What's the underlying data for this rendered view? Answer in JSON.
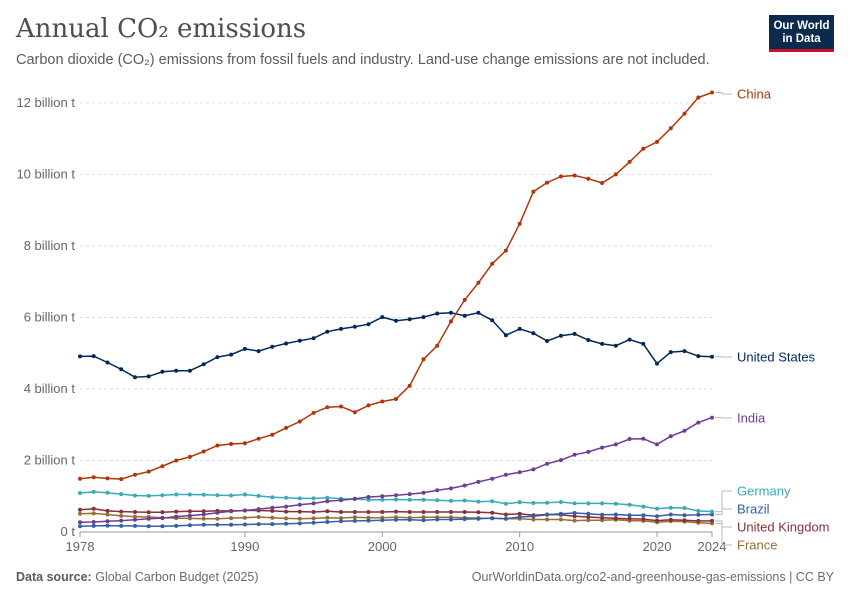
{
  "header": {
    "title": "Annual CO₂ emissions",
    "subtitle": "Carbon dioxide (CO₂) emissions from fossil fuels and industry. Land-use change emissions are not included."
  },
  "logo": {
    "line1": "Our World",
    "line2": "in Data"
  },
  "footer": {
    "source_label": "Data source:",
    "source_value": "Global Carbon Budget (2025)",
    "url": "OurWorldinData.org/co2-and-greenhouse-gas-emissions | CC BY"
  },
  "chart_data": {
    "type": "line",
    "x": [
      1978,
      1979,
      1980,
      1981,
      1982,
      1983,
      1984,
      1985,
      1986,
      1987,
      1988,
      1989,
      1990,
      1991,
      1992,
      1993,
      1994,
      1995,
      1996,
      1997,
      1998,
      1999,
      2000,
      2001,
      2002,
      2003,
      2004,
      2005,
      2006,
      2007,
      2008,
      2009,
      2010,
      2011,
      2012,
      2013,
      2014,
      2015,
      2016,
      2017,
      2018,
      2019,
      2020,
      2021,
      2022,
      2023,
      2024
    ],
    "xlim": [
      1978,
      2024
    ],
    "ylim": [
      0,
      12500000000
    ],
    "yticks": [
      0,
      2000000000,
      4000000000,
      6000000000,
      8000000000,
      10000000000,
      12000000000
    ],
    "ytick_labels": [
      "0 t",
      "2 billion t",
      "4 billion t",
      "6 billion t",
      "8 billion t",
      "10 billion t",
      "12 billion t"
    ],
    "xticks": [
      1978,
      1990,
      2000,
      2010,
      2020,
      2024
    ],
    "xtick_labels": [
      "1978",
      "1990",
      "2000",
      "2010",
      "2020",
      "2024"
    ],
    "grid": "horizontal-dashed",
    "legend": "right-end-labels",
    "series": [
      {
        "name": "China",
        "color": "#b13507",
        "label_value": 12290000000,
        "values": [
          1490000000,
          1530000000,
          1500000000,
          1480000000,
          1600000000,
          1690000000,
          1840000000,
          2000000000,
          2100000000,
          2250000000,
          2420000000,
          2460000000,
          2480000000,
          2610000000,
          2720000000,
          2910000000,
          3090000000,
          3330000000,
          3490000000,
          3510000000,
          3350000000,
          3540000000,
          3650000000,
          3720000000,
          4090000000,
          4830000000,
          5210000000,
          5890000000,
          6490000000,
          6970000000,
          7500000000,
          7870000000,
          8620000000,
          9520000000,
          9770000000,
          9940000000,
          9970000000,
          9880000000,
          9760000000,
          10000000000,
          10350000000,
          10720000000,
          10910000000,
          11290000000,
          11700000000,
          12150000000,
          12290000000
        ]
      },
      {
        "name": "United States",
        "color": "#00295b",
        "label_value": 4900000000,
        "values": [
          4910000000,
          4920000000,
          4740000000,
          4550000000,
          4330000000,
          4350000000,
          4480000000,
          4510000000,
          4510000000,
          4690000000,
          4890000000,
          4960000000,
          5120000000,
          5060000000,
          5180000000,
          5270000000,
          5350000000,
          5420000000,
          5600000000,
          5680000000,
          5740000000,
          5810000000,
          6010000000,
          5910000000,
          5950000000,
          6010000000,
          6110000000,
          6130000000,
          6050000000,
          6130000000,
          5920000000,
          5500000000,
          5680000000,
          5560000000,
          5340000000,
          5490000000,
          5540000000,
          5370000000,
          5260000000,
          5210000000,
          5380000000,
          5260000000,
          4710000000,
          5030000000,
          5060000000,
          4920000000,
          4900000000
        ]
      },
      {
        "name": "India",
        "color": "#6d3e91",
        "label_value": 3200000000,
        "values": [
          270000000,
          280000000,
          300000000,
          320000000,
          340000000,
          370000000,
          390000000,
          430000000,
          460000000,
          490000000,
          540000000,
          580000000,
          600000000,
          640000000,
          680000000,
          710000000,
          760000000,
          800000000,
          860000000,
          890000000,
          930000000,
          980000000,
          1000000000,
          1030000000,
          1060000000,
          1100000000,
          1170000000,
          1220000000,
          1300000000,
          1400000000,
          1490000000,
          1600000000,
          1670000000,
          1750000000,
          1910000000,
          2010000000,
          2160000000,
          2240000000,
          2360000000,
          2450000000,
          2600000000,
          2610000000,
          2450000000,
          2680000000,
          2830000000,
          3060000000,
          3200000000
        ]
      },
      {
        "name": "Germany",
        "color": "#38aaba",
        "label_value": 570000000,
        "values": [
          1090000000,
          1120000000,
          1100000000,
          1060000000,
          1020000000,
          1010000000,
          1030000000,
          1050000000,
          1050000000,
          1040000000,
          1030000000,
          1020000000,
          1050000000,
          1010000000,
          970000000,
          960000000,
          940000000,
          940000000,
          960000000,
          930000000,
          920000000,
          900000000,
          900000000,
          910000000,
          900000000,
          900000000,
          890000000,
          870000000,
          880000000,
          850000000,
          860000000,
          790000000,
          830000000,
          810000000,
          820000000,
          840000000,
          800000000,
          800000000,
          800000000,
          790000000,
          760000000,
          710000000,
          650000000,
          680000000,
          670000000,
          590000000,
          570000000
        ]
      },
      {
        "name": "Brazil",
        "color": "#3360a9",
        "label_value": 490000000,
        "values": [
          160000000,
          170000000,
          180000000,
          170000000,
          170000000,
          160000000,
          160000000,
          170000000,
          190000000,
          200000000,
          200000000,
          200000000,
          210000000,
          220000000,
          220000000,
          230000000,
          240000000,
          260000000,
          280000000,
          300000000,
          310000000,
          320000000,
          330000000,
          340000000,
          340000000,
          330000000,
          350000000,
          350000000,
          360000000,
          370000000,
          390000000,
          370000000,
          420000000,
          440000000,
          480000000,
          510000000,
          530000000,
          510000000,
          480000000,
          490000000,
          470000000,
          470000000,
          440000000,
          490000000,
          470000000,
          480000000,
          490000000
        ]
      },
      {
        "name": "United Kingdom",
        "color": "#883039",
        "label_value": 310000000,
        "values": [
          620000000,
          650000000,
          590000000,
          570000000,
          560000000,
          550000000,
          550000000,
          570000000,
          580000000,
          580000000,
          590000000,
          590000000,
          600000000,
          600000000,
          590000000,
          570000000,
          570000000,
          560000000,
          580000000,
          560000000,
          560000000,
          560000000,
          560000000,
          570000000,
          560000000,
          560000000,
          560000000,
          560000000,
          560000000,
          550000000,
          540000000,
          490000000,
          510000000,
          470000000,
          490000000,
          480000000,
          440000000,
          420000000,
          400000000,
          380000000,
          370000000,
          360000000,
          320000000,
          340000000,
          330000000,
          310000000,
          310000000
        ]
      },
      {
        "name": "France",
        "color": "#996d39",
        "label_value": 240000000,
        "values": [
          510000000,
          520000000,
          490000000,
          450000000,
          430000000,
          420000000,
          400000000,
          390000000,
          380000000,
          370000000,
          370000000,
          390000000,
          400000000,
          420000000,
          400000000,
          380000000,
          370000000,
          380000000,
          400000000,
          390000000,
          410000000,
          400000000,
          400000000,
          410000000,
          400000000,
          410000000,
          410000000,
          410000000,
          400000000,
          390000000,
          380000000,
          370000000,
          370000000,
          350000000,
          350000000,
          350000000,
          320000000,
          330000000,
          330000000,
          340000000,
          320000000,
          310000000,
          270000000,
          300000000,
          290000000,
          260000000,
          240000000
        ]
      }
    ]
  }
}
